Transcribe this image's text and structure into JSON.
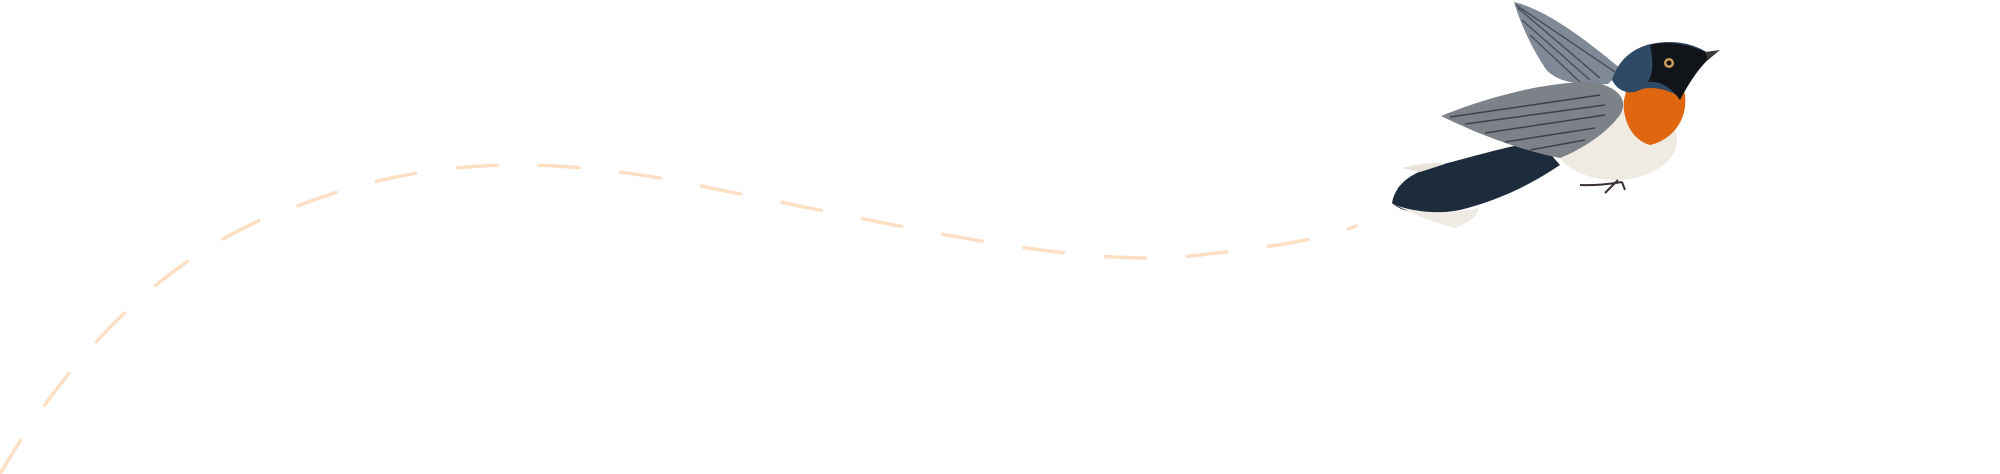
{
  "colors": {
    "background": "#ffffff",
    "flight_path": "#fddfc3",
    "bird_blue": "#2b4258",
    "bird_orange": "#e0670f",
    "bird_wing": "#7d8690",
    "bird_belly": "#efebe3"
  },
  "illustration": {
    "subject": "bird-illustration",
    "decoration": "dashed-flight-path"
  }
}
